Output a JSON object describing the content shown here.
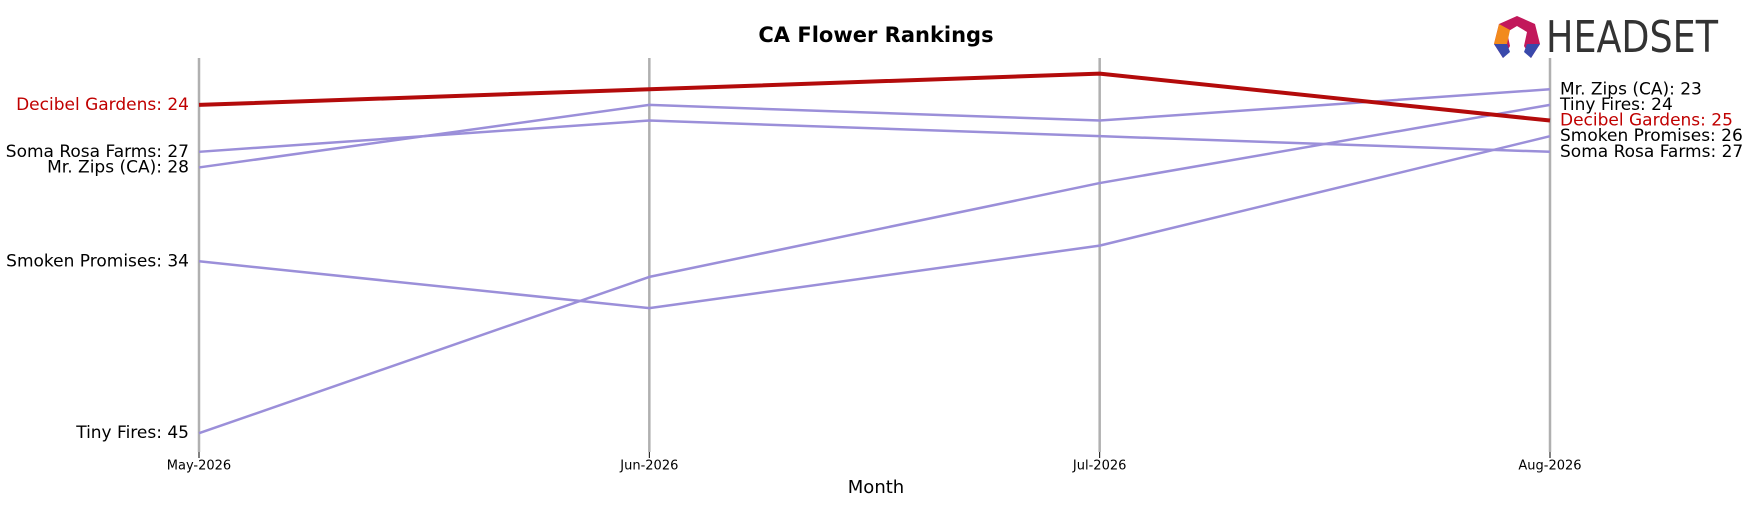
{
  "chart_data": {
    "type": "bump",
    "title": "CA Flower Rankings",
    "logo": "HEADSET",
    "x_label": "Month",
    "categories": [
      "May-2026",
      "Jun-2026",
      "Jul-2026",
      "Aug-2026"
    ],
    "ylim": [
      46.2,
      21
    ],
    "series": [
      {
        "name": "Soma Rosa Farms",
        "color": "#9b8fd9",
        "label_color": "#000000",
        "width": 2.5,
        "values": [
          27,
          25,
          26,
          27
        ],
        "value_labels": [
          "Soma Rosa Farms: 27",
          null,
          null,
          "Soma Rosa Farms: 27"
        ]
      },
      {
        "name": "Mr. Zips (CA)",
        "color": "#9b8fd9",
        "label_color": "#000000",
        "width": 2.5,
        "values": [
          28,
          24,
          25,
          23
        ],
        "value_labels": [
          "Mr. Zips (CA): 28",
          null,
          null,
          "Mr. Zips (CA): 23"
        ]
      },
      {
        "name": "Smoken Promises",
        "color": "#9b8fd9",
        "label_color": "#000000",
        "width": 2.5,
        "values": [
          34,
          37,
          33,
          26
        ],
        "value_labels": [
          "Smoken Promises: 34",
          null,
          null,
          "Smoken Promises: 26"
        ]
      },
      {
        "name": "Tiny Fires",
        "color": "#9b8fd9",
        "label_color": "#000000",
        "width": 2.5,
        "values": [
          45,
          35,
          29,
          24
        ],
        "value_labels": [
          "Tiny Fires: 45",
          null,
          null,
          "Tiny Fires: 24"
        ]
      },
      {
        "name": "Decibel Gardens",
        "color": "#b30b0b",
        "label_color": "#c00000",
        "width": 4,
        "values": [
          24,
          23,
          22,
          25
        ],
        "value_labels": [
          "Decibel Gardens: 24",
          null,
          null,
          "Decibel Gardens: 25"
        ]
      }
    ]
  }
}
